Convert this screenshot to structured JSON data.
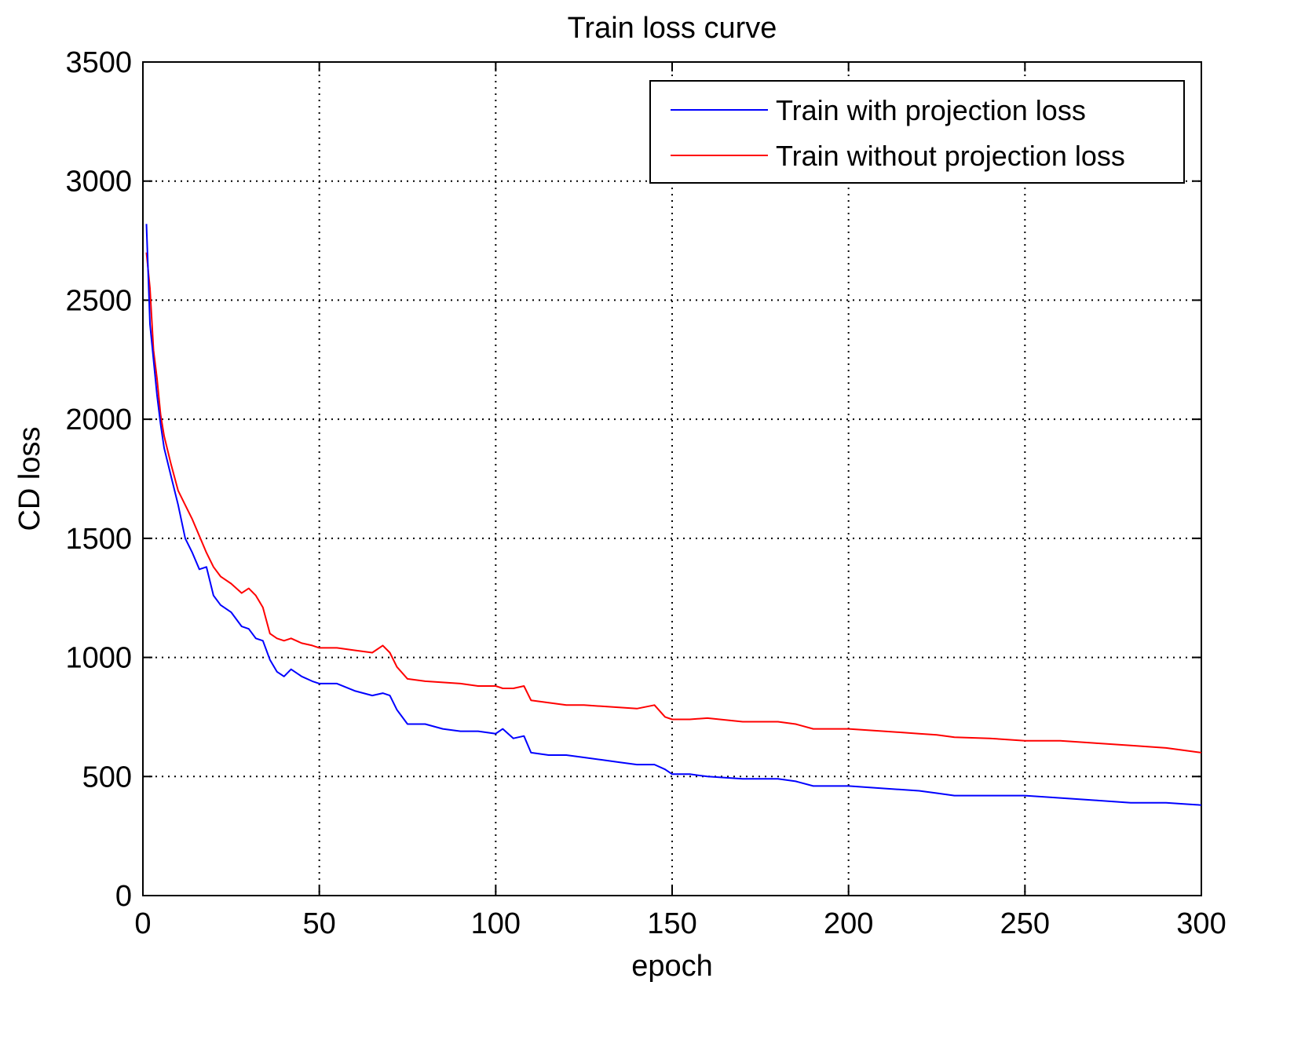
{
  "chart_data": {
    "type": "line",
    "title": "Train loss curve",
    "xlabel": "epoch",
    "ylabel": "CD loss",
    "xlim": [
      0,
      300
    ],
    "ylim": [
      0,
      3500
    ],
    "xticks": [
      0,
      50,
      100,
      150,
      200,
      250,
      300
    ],
    "yticks": [
      0,
      500,
      1000,
      1500,
      2000,
      2500,
      3000,
      3500
    ],
    "grid": true,
    "legend_position": "top-right",
    "series": [
      {
        "name": "Train with projection loss",
        "color": "#0000ff",
        "x": [
          1,
          2,
          3,
          4,
          5,
          6,
          8,
          10,
          12,
          14,
          16,
          18,
          20,
          22,
          25,
          28,
          30,
          32,
          34,
          36,
          38,
          40,
          42,
          45,
          48,
          50,
          55,
          60,
          65,
          68,
          70,
          72,
          75,
          80,
          85,
          90,
          95,
          100,
          102,
          105,
          108,
          110,
          115,
          120,
          125,
          130,
          135,
          140,
          145,
          148,
          150,
          155,
          160,
          170,
          180,
          185,
          190,
          200,
          210,
          220,
          225,
          230,
          240,
          250,
          260,
          270,
          280,
          290,
          295,
          300
        ],
        "values": [
          2820,
          2400,
          2250,
          2100,
          1980,
          1880,
          1760,
          1640,
          1500,
          1440,
          1370,
          1380,
          1260,
          1220,
          1190,
          1130,
          1120,
          1080,
          1070,
          990,
          940,
          920,
          950,
          920,
          900,
          890,
          890,
          860,
          840,
          850,
          840,
          780,
          720,
          720,
          700,
          690,
          690,
          680,
          700,
          660,
          670,
          600,
          590,
          590,
          580,
          570,
          560,
          550,
          550,
          530,
          510,
          510,
          500,
          490,
          490,
          480,
          460,
          460,
          450,
          440,
          430,
          420,
          420,
          420,
          410,
          400,
          390,
          390,
          385,
          380
        ]
      },
      {
        "name": "Train without projection loss",
        "color": "#ff0000",
        "x": [
          1,
          2,
          3,
          4,
          5,
          6,
          8,
          10,
          12,
          14,
          16,
          18,
          20,
          22,
          25,
          28,
          30,
          32,
          34,
          36,
          38,
          40,
          42,
          45,
          48,
          50,
          55,
          60,
          65,
          68,
          70,
          72,
          75,
          80,
          85,
          90,
          95,
          100,
          102,
          105,
          108,
          110,
          115,
          120,
          125,
          130,
          135,
          140,
          145,
          148,
          150,
          155,
          160,
          170,
          180,
          185,
          190,
          200,
          210,
          220,
          225,
          230,
          240,
          250,
          260,
          270,
          280,
          290,
          295,
          300
        ],
        "values": [
          2700,
          2550,
          2290,
          2170,
          2020,
          1930,
          1810,
          1700,
          1640,
          1580,
          1510,
          1440,
          1380,
          1340,
          1310,
          1270,
          1290,
          1260,
          1210,
          1100,
          1080,
          1070,
          1080,
          1060,
          1050,
          1040,
          1040,
          1030,
          1020,
          1050,
          1020,
          960,
          910,
          900,
          895,
          890,
          880,
          880,
          870,
          870,
          880,
          820,
          810,
          800,
          800,
          795,
          790,
          785,
          800,
          750,
          740,
          740,
          745,
          730,
          730,
          720,
          700,
          700,
          690,
          680,
          675,
          665,
          660,
          650,
          650,
          640,
          630,
          620,
          610,
          600
        ]
      }
    ]
  }
}
